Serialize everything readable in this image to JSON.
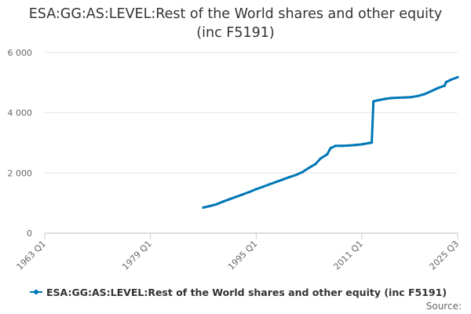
{
  "chart_data": {
    "type": "line",
    "title": "ESA:GG:AS:LEVEL:Rest of the World shares and other equity (inc F5191)",
    "title_line1": "ESA:GG:AS:LEVEL:Rest of the World shares and other equity",
    "title_line2": "(inc F5191)",
    "xlabel": "",
    "ylabel": "",
    "x_start": 1963.0,
    "x_end": 2025.5,
    "ylim": [
      0,
      6000
    ],
    "y_ticks": [
      0,
      2000,
      4000,
      6000
    ],
    "y_tick_labels": [
      "0",
      "2 000",
      "4 000",
      "6 000"
    ],
    "x_ticks": [
      1963.0,
      1979.0,
      1995.0,
      2011.0,
      2025.5
    ],
    "x_tick_labels": [
      "1963 Q1",
      "1979 Q1",
      "1995 Q1",
      "2011 Q1",
      "2025 Q3"
    ],
    "grid": true,
    "series": [
      {
        "name": "ESA:GG:AS:LEVEL:Rest of the World shares and other equity (inc F5191)",
        "color": "#0077b6",
        "points": [
          [
            1987.0,
            850
          ],
          [
            1988.0,
            900
          ],
          [
            1989.0,
            960
          ],
          [
            1990.0,
            1050
          ],
          [
            1991.0,
            1130
          ],
          [
            1992.0,
            1210
          ],
          [
            1993.0,
            1290
          ],
          [
            1994.0,
            1370
          ],
          [
            1995.0,
            1460
          ],
          [
            1996.0,
            1540
          ],
          [
            1997.0,
            1620
          ],
          [
            1998.0,
            1700
          ],
          [
            1999.0,
            1780
          ],
          [
            2000.0,
            1860
          ],
          [
            2001.0,
            1930
          ],
          [
            2002.0,
            2030
          ],
          [
            2003.0,
            2170
          ],
          [
            2004.0,
            2300
          ],
          [
            2004.75,
            2480
          ],
          [
            2005.75,
            2620
          ],
          [
            2006.25,
            2820
          ],
          [
            2007.0,
            2900
          ],
          [
            2008.0,
            2900
          ],
          [
            2009.0,
            2910
          ],
          [
            2010.0,
            2930
          ],
          [
            2011.0,
            2950
          ],
          [
            2012.0,
            2990
          ],
          [
            2012.5,
            3010
          ],
          [
            2012.75,
            4380
          ],
          [
            2013.5,
            4420
          ],
          [
            2014.5,
            4460
          ],
          [
            2015.5,
            4490
          ],
          [
            2016.5,
            4500
          ],
          [
            2017.5,
            4510
          ],
          [
            2018.5,
            4520
          ],
          [
            2019.5,
            4560
          ],
          [
            2020.5,
            4620
          ],
          [
            2021.5,
            4720
          ],
          [
            2022.5,
            4820
          ],
          [
            2023.5,
            4900
          ],
          [
            2023.75,
            5020
          ],
          [
            2024.5,
            5100
          ],
          [
            2025.5,
            5180
          ]
        ]
      }
    ]
  },
  "legend": {
    "label": "ESA:GG:AS:LEVEL:Rest of the World shares and other equity (inc F5191)"
  },
  "source_label": "Source:"
}
